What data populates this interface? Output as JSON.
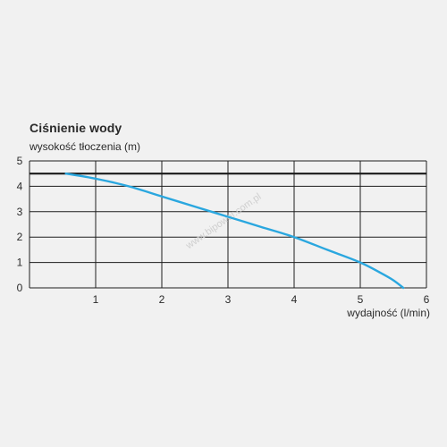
{
  "chart_data": {
    "type": "line",
    "title": "Ciśnienie wody",
    "ylabel": "wysokość tłoczenia (m)",
    "xlabel": "wydajność (l/min)",
    "xlim": [
      0,
      6
    ],
    "ylim": [
      0,
      5
    ],
    "x_ticks": [
      1,
      2,
      3,
      4,
      5,
      6
    ],
    "y_ticks": [
      0,
      1,
      2,
      3,
      4,
      5
    ],
    "grid": true,
    "reference_line": {
      "y": 4.5,
      "color": "#1a1a1a"
    },
    "series": [
      {
        "color": "#2aa7df",
        "x": [
          0.55,
          1.0,
          1.5,
          2.0,
          2.5,
          3.0,
          3.5,
          4.0,
          4.5,
          5.0,
          5.3,
          5.5,
          5.65
        ],
        "y": [
          4.5,
          4.3,
          4.0,
          3.6,
          3.2,
          2.8,
          2.4,
          2.0,
          1.5,
          1.0,
          0.6,
          0.3,
          0.0
        ]
      }
    ]
  },
  "watermark": "www.bipower.com.pl"
}
